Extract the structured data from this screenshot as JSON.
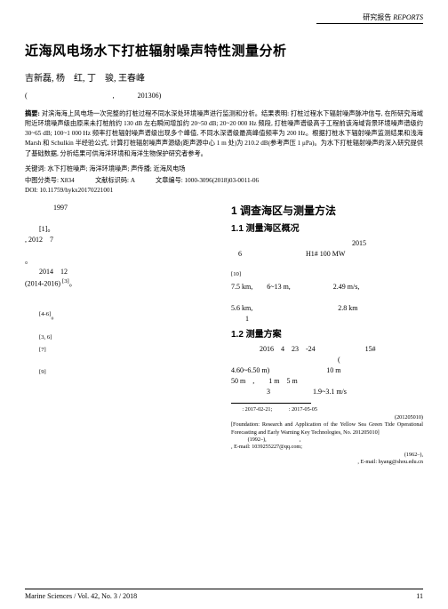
{
  "header": {
    "label_cn": "研究报告",
    "label_en": "REPORTS"
  },
  "title": "近海风电场水下打桩辐射噪声特性测量分析",
  "authors": "吉新磊, 杨　红, 丁　骏, 王春峰",
  "affil_code": "201306",
  "abstract": {
    "label": "摘要:",
    "text": "对滨海海上风电场一次完整的打桩过程不同水深处环境噪声进行监测和分析。结果表明: 打桩过程水下辐射噪声脉冲信号, 在所研究海域附近环境噪声级由原来未打桩前约 130 dB 左右瞬间增加约 20~50 dB; 20~20 000 Hz 频段, 打桩噪声谱级高于工程前该海域背景环境噪声谱级约 30~65 dB; 100~1 000 Hz 频率打桩辐射噪声谱级出现多个峰值, 不同水深谱级最高峰值频率为 200 Hz。根据打桩水下辐射噪声监测结果和浅海 Marsh 和 Schulkin 半经验公式, 计算打桩辐射噪声声源级(距声源中心 1 m 处)为 210.2 dB(参考声压 1 μPa)。为水下打桩辐射噪声的深入研究提供了基础数据, 分析结果可供海洋环境和海洋生物保护研究者参考。"
  },
  "keywords": {
    "label": "关键词:",
    "text": "水下打桩噪声; 海洋环境噪声; 声传播; 近海风电场"
  },
  "classification": {
    "clc_label": "中图分类号:",
    "clc": "X834",
    "docCode_label": "文献标识码:",
    "docCode": "A",
    "articleId_label": "文章编号:",
    "articleId": "1000-3096(2018)03-0011-06"
  },
  "doi": "DOI: 10.11759/hykx20170221001",
  "left_col": {
    "p1": "1997",
    "p2": ", 2012　7",
    "p3": "2014　12",
    "p4": "(2014-2016)",
    "ref_a": "[1]",
    "ref_b": "[3]",
    "ref_c": "[4-6]",
    "ref_d": "[3, 6]",
    "ref_e": "[7]",
    "ref_f": "[9]"
  },
  "right_col": {
    "sec1": "1  调查海区与测量方法",
    "sec1_1": "1.1  测量海区概况",
    "p11_a": "2015",
    "p11_b": "6",
    "p11_c": "H1# 100 MW",
    "ref10": "[10]",
    "p11_d": "7.5 km,",
    "p11_e": "6~13 m,",
    "p11_f": "2.49 m/s,",
    "p11_g": "5.6 km,",
    "p11_h": "2.8 km",
    "p11_i": "1",
    "sec1_2": "1.2  测量方案",
    "p12_a": "2016　4　23　-24",
    "p12_b": "15#",
    "p12_c": "(",
    "p12_d": "4.60~6.50 m)",
    "p12_e": "10 m",
    "p12_f": "50 m",
    "p12_g_label": ",",
    "p12_g": "1 m",
    "p12_h": "5 m",
    "p12_i": "3",
    "p12_j": "1.9~3.1 m/s"
  },
  "footnotes": {
    "recv": ": 2017-02-21;",
    "acc": ": 2017-05-05",
    "fund_no": "(201205010)",
    "fund_en": "[Foundation: Research and Application of the Yellow Sea Green Tide Operational Forecasting and Early Warning Key Technologies, No. 201205010]",
    "author_year": "(1992–),",
    "tel": ", E-mail: 1039255227@qq.com;",
    "corr_year": "(1962–),",
    "corr_mail": ", E-mail: hyang@shou.edu.cn"
  },
  "footer": {
    "journal": "Marine Sciences / Vol. 42, No. 3 / 2018",
    "page": "11"
  }
}
